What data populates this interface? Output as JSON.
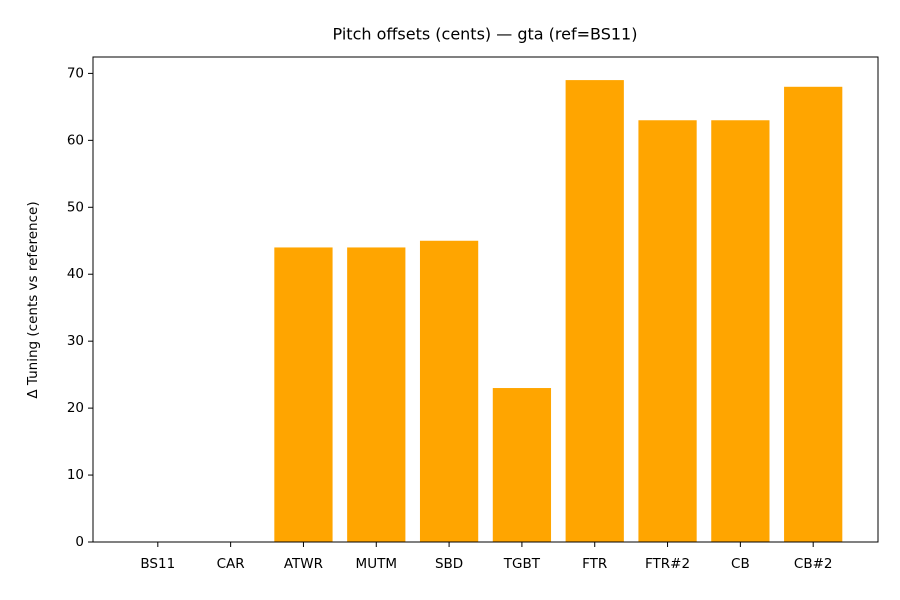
{
  "chart_data": {
    "type": "bar",
    "title": "Pitch offsets (cents) — gta (ref=BS11)",
    "y_label": "Δ Tuning (cents vs reference)",
    "categories": [
      "BS11",
      "CAR",
      "ATWR",
      "MUTM",
      "SBD",
      "TGBT",
      "FTR",
      "FTR#2",
      "CB",
      "CB#2"
    ],
    "values": [
      0,
      0,
      44,
      44,
      45,
      23,
      69,
      63,
      63,
      68
    ],
    "color": "#ffa500",
    "ylim": [
      0,
      72.45
    ],
    "yticks": [
      0,
      10,
      20,
      30,
      40,
      50,
      60,
      70
    ],
    "grid": false
  }
}
